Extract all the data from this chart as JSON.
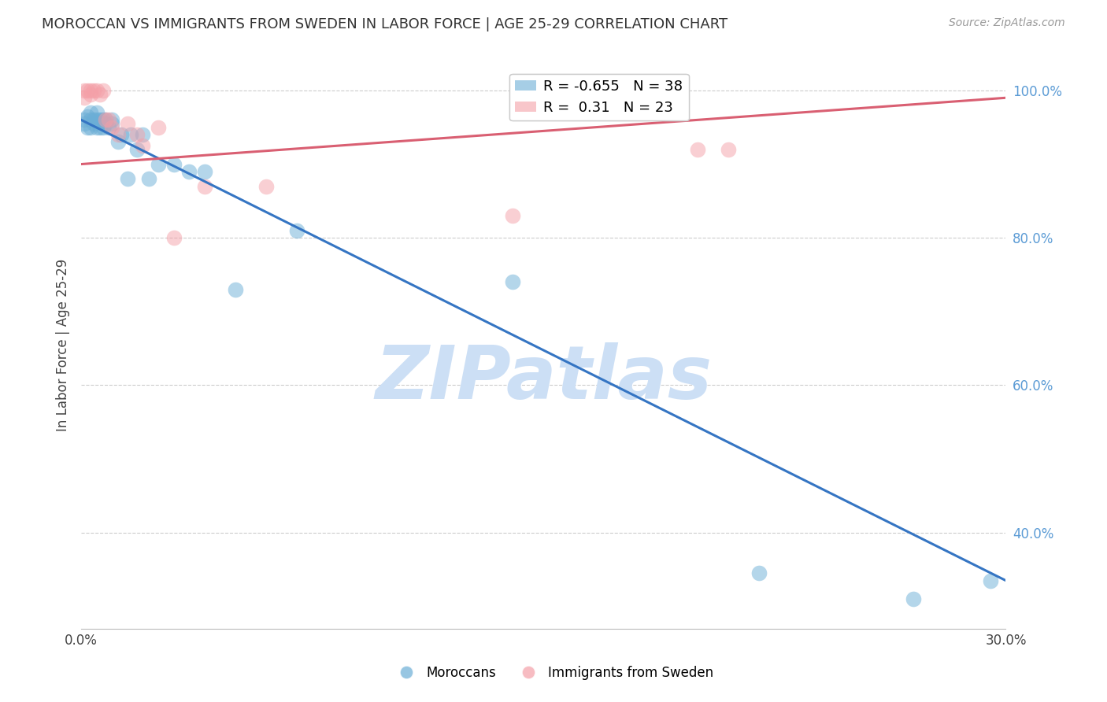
{
  "title": "MOROCCAN VS IMMIGRANTS FROM SWEDEN IN LABOR FORCE | AGE 25-29 CORRELATION CHART",
  "source": "Source: ZipAtlas.com",
  "ylabel": "In Labor Force | Age 25-29",
  "xlim": [
    0.0,
    0.3
  ],
  "ylim": [
    0.27,
    1.04
  ],
  "xticks": [
    0.0,
    0.05,
    0.1,
    0.15,
    0.2,
    0.25,
    0.3
  ],
  "xtick_labels": [
    "0.0%",
    "",
    "",
    "",
    "",
    "",
    "30.0%"
  ],
  "ytick_right_vals": [
    0.4,
    0.6,
    0.8,
    1.0
  ],
  "ytick_right_labels": [
    "40.0%",
    "60.0%",
    "80.0%",
    "100.0%"
  ],
  "blue_color": "#6baed6",
  "pink_color": "#f4a0a8",
  "trend_blue": "#3575c3",
  "trend_pink": "#d95f72",
  "R_blue": -0.655,
  "N_blue": 38,
  "R_pink": 0.31,
  "N_pink": 23,
  "watermark": "ZIPatlas",
  "watermark_color": "#ccdff5",
  "blue_scatter_x": [
    0.001,
    0.001,
    0.002,
    0.002,
    0.003,
    0.003,
    0.003,
    0.004,
    0.004,
    0.005,
    0.005,
    0.005,
    0.006,
    0.006,
    0.007,
    0.007,
    0.008,
    0.008,
    0.009,
    0.01,
    0.01,
    0.012,
    0.013,
    0.015,
    0.016,
    0.018,
    0.02,
    0.022,
    0.025,
    0.03,
    0.035,
    0.04,
    0.05,
    0.07,
    0.14,
    0.22,
    0.27,
    0.295
  ],
  "blue_scatter_y": [
    0.955,
    0.96,
    0.95,
    0.965,
    0.95,
    0.96,
    0.97,
    0.955,
    0.96,
    0.95,
    0.96,
    0.97,
    0.95,
    0.96,
    0.95,
    0.96,
    0.955,
    0.96,
    0.95,
    0.955,
    0.96,
    0.93,
    0.94,
    0.88,
    0.94,
    0.92,
    0.94,
    0.88,
    0.9,
    0.9,
    0.89,
    0.89,
    0.73,
    0.81,
    0.74,
    0.345,
    0.31,
    0.335
  ],
  "pink_scatter_x": [
    0.001,
    0.001,
    0.002,
    0.003,
    0.003,
    0.004,
    0.005,
    0.006,
    0.007,
    0.008,
    0.009,
    0.01,
    0.012,
    0.015,
    0.018,
    0.02,
    0.025,
    0.03,
    0.04,
    0.06,
    0.14,
    0.2,
    0.21
  ],
  "pink_scatter_y": [
    0.99,
    1.0,
    1.0,
    0.995,
    1.0,
    1.0,
    1.0,
    0.995,
    1.0,
    0.96,
    0.96,
    0.95,
    0.94,
    0.955,
    0.94,
    0.925,
    0.95,
    0.8,
    0.87,
    0.87,
    0.83,
    0.92,
    0.92
  ],
  "blue_trend_x": [
    0.0,
    0.3
  ],
  "blue_trend_y": [
    0.96,
    0.335
  ],
  "pink_trend_x": [
    0.0,
    0.3
  ],
  "pink_trend_y": [
    0.9,
    0.99
  ]
}
